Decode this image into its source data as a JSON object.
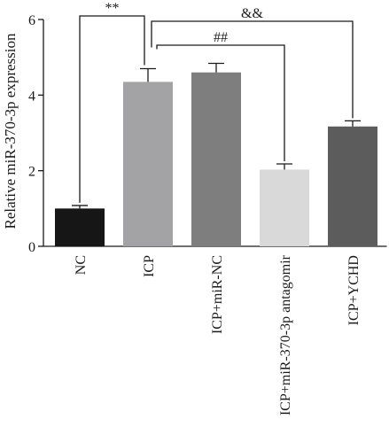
{
  "chart_data": {
    "type": "bar",
    "title": "",
    "xlabel": "",
    "ylabel": "Relative miR-370-3p expression",
    "ylim": [
      0,
      6
    ],
    "yticks": [
      0,
      2,
      4,
      6
    ],
    "grid": false,
    "categories": [
      "NC",
      "ICP",
      "ICP+miR-NC",
      "ICP+miR-370-3p antagomir",
      "ICP+YCHD"
    ],
    "values": [
      1.0,
      4.35,
      4.6,
      2.03,
      3.17
    ],
    "errors": [
      0.08,
      0.35,
      0.24,
      0.15,
      0.15
    ],
    "colors": [
      "#161616",
      "#a3a3a6",
      "#7e7e7e",
      "#d9d9d9",
      "#5c5c5c"
    ],
    "significance": [
      {
        "from": 0,
        "to": 1,
        "label": "**"
      },
      {
        "from": 1,
        "to": 4,
        "label": "&&"
      },
      {
        "from": 1,
        "to": 3,
        "label": "##"
      }
    ]
  }
}
